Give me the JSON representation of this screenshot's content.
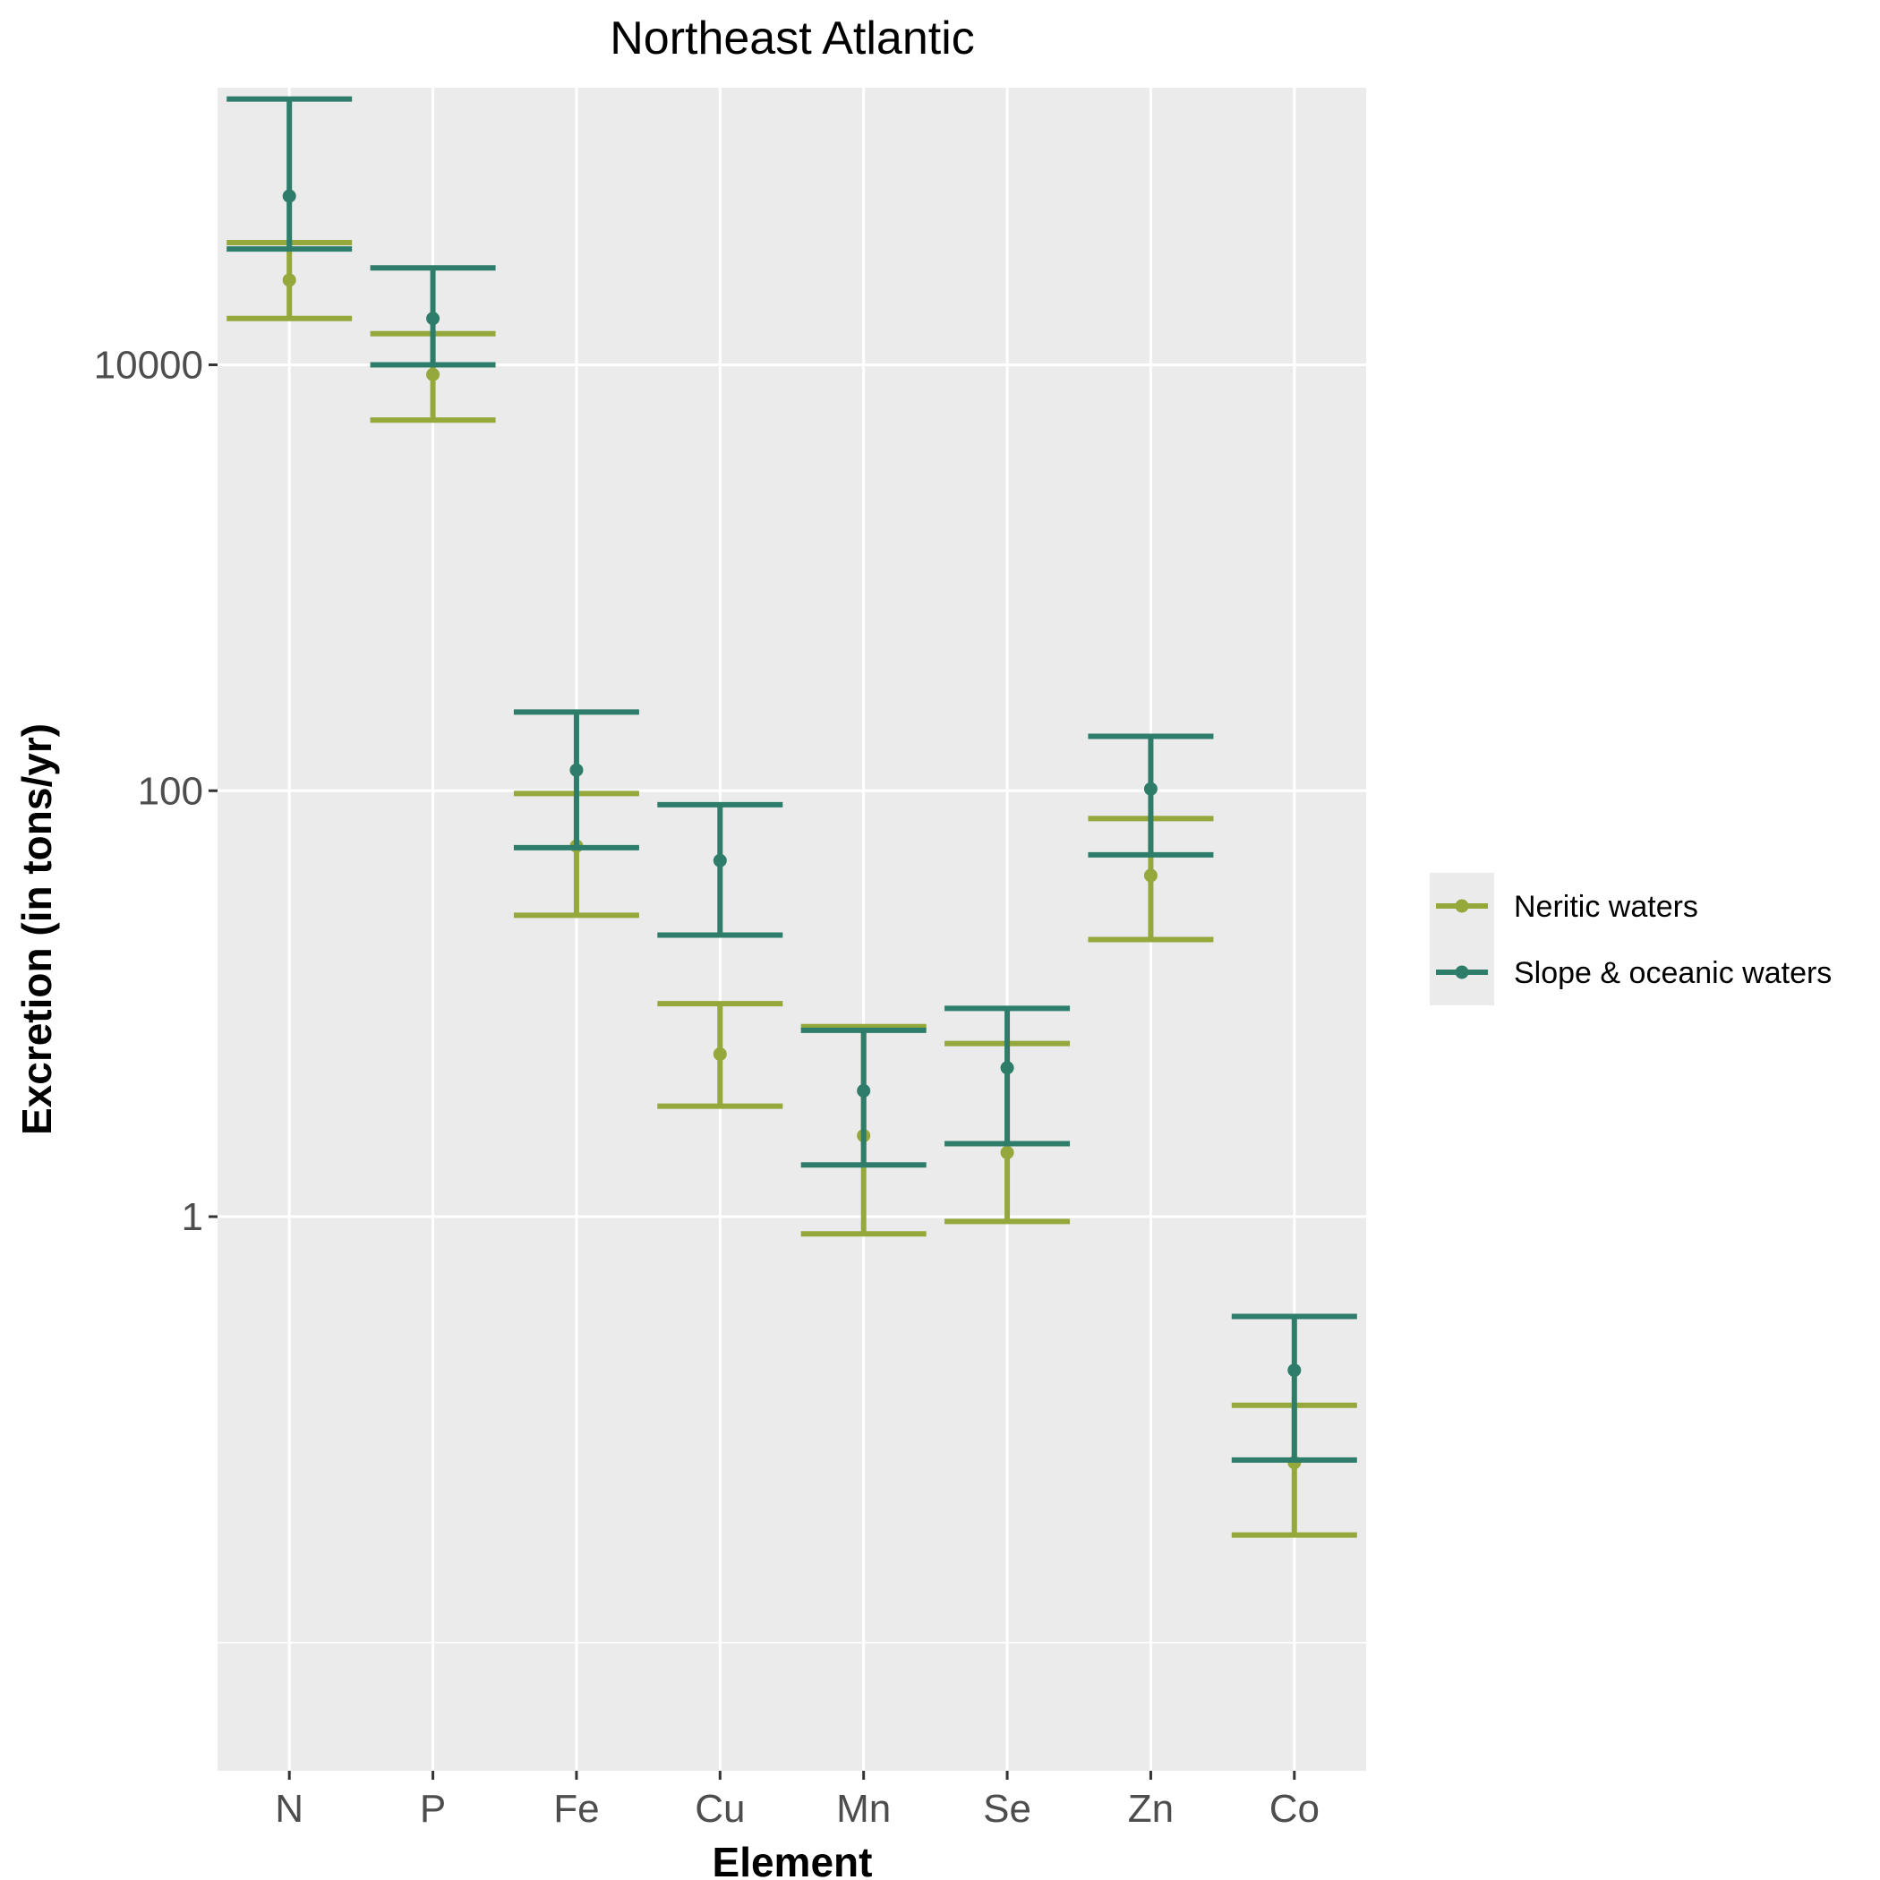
{
  "chart_data": {
    "type": "errorbar",
    "title": "Northeast Atlantic",
    "xlabel": "Element",
    "ylabel": "Excretion (in tons/yr)",
    "y_scale": "log10",
    "ylim": [
      0.0025,
      200000
    ],
    "y_ticks": [
      1,
      100,
      10000
    ],
    "y_tick_labels": [
      "1",
      "100",
      "10000"
    ],
    "grid": true,
    "legend_position": "right",
    "categories": [
      "N",
      "P",
      "Fe",
      "Cu",
      "Mn",
      "Se",
      "Zn",
      "Co"
    ],
    "series": [
      {
        "name": "Neritic waters",
        "color": "#94a83c",
        "values": [
          25000,
          9000,
          55,
          5.8,
          2.4,
          2.0,
          40,
          0.07
        ],
        "lower": [
          16500,
          5500,
          26,
          3.3,
          0.83,
          0.95,
          20,
          0.032
        ],
        "upper": [
          37500,
          14000,
          97,
          10,
          7.8,
          6.5,
          74,
          0.13
        ]
      },
      {
        "name": "Slope & oceanic waters",
        "color": "#2e7d6b",
        "values": [
          62000,
          16500,
          125,
          47,
          3.9,
          5.0,
          102,
          0.19
        ],
        "lower": [
          35000,
          10000,
          54,
          21,
          1.75,
          2.2,
          50,
          0.072
        ],
        "upper": [
          177000,
          28500,
          234,
          86,
          7.5,
          9.5,
          180,
          0.34
        ]
      }
    ]
  }
}
